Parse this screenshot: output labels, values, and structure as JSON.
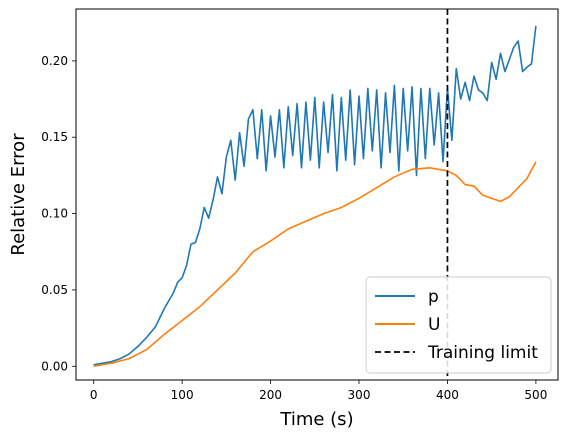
{
  "chart_data": {
    "type": "line",
    "title": "",
    "xlabel": "Time (s)",
    "ylabel": "Relative Error",
    "xlim": [
      -20,
      525
    ],
    "ylim": [
      -0.009,
      0.234
    ],
    "xticks": [
      0,
      100,
      200,
      300,
      400,
      500
    ],
    "yticks": [
      0.0,
      0.05,
      0.1,
      0.15,
      0.2
    ],
    "ytick_labels": [
      "0.00",
      "0.05",
      "0.10",
      "0.15",
      "0.20"
    ],
    "grid": false,
    "legend_position": "lower-right",
    "series": [
      {
        "name": "p",
        "color": "#1f77b4",
        "x": [
          0,
          10,
          20,
          30,
          40,
          50,
          60,
          70,
          80,
          85,
          90,
          95,
          100,
          105,
          110,
          115,
          120,
          125,
          130,
          135,
          140,
          145,
          150,
          155,
          160,
          165,
          170,
          175,
          180,
          185,
          190,
          195,
          200,
          205,
          210,
          215,
          220,
          225,
          230,
          235,
          240,
          245,
          250,
          255,
          260,
          265,
          270,
          275,
          280,
          285,
          290,
          295,
          300,
          305,
          310,
          315,
          320,
          325,
          330,
          335,
          340,
          345,
          350,
          355,
          360,
          365,
          370,
          375,
          380,
          385,
          390,
          395,
          400,
          405,
          410,
          415,
          420,
          425,
          430,
          435,
          440,
          445,
          450,
          455,
          460,
          465,
          470,
          475,
          480,
          485,
          490,
          495,
          500
        ],
        "y": [
          0.001,
          0.002,
          0.003,
          0.005,
          0.008,
          0.013,
          0.019,
          0.026,
          0.038,
          0.043,
          0.048,
          0.055,
          0.058,
          0.066,
          0.08,
          0.081,
          0.09,
          0.104,
          0.097,
          0.109,
          0.124,
          0.113,
          0.137,
          0.148,
          0.122,
          0.153,
          0.131,
          0.162,
          0.168,
          0.136,
          0.168,
          0.128,
          0.164,
          0.137,
          0.168,
          0.13,
          0.17,
          0.138,
          0.172,
          0.13,
          0.173,
          0.135,
          0.176,
          0.13,
          0.173,
          0.14,
          0.178,
          0.128,
          0.176,
          0.135,
          0.181,
          0.132,
          0.177,
          0.136,
          0.182,
          0.141,
          0.181,
          0.13,
          0.179,
          0.14,
          0.184,
          0.128,
          0.182,
          0.141,
          0.183,
          0.125,
          0.182,
          0.136,
          0.182,
          0.145,
          0.179,
          0.134,
          0.182,
          0.148,
          0.195,
          0.175,
          0.186,
          0.174,
          0.19,
          0.181,
          0.179,
          0.174,
          0.199,
          0.188,
          0.205,
          0.193,
          0.201,
          0.209,
          0.213,
          0.193,
          0.196,
          0.198,
          0.223
        ]
      },
      {
        "name": "U",
        "color": "#ff7f0e",
        "x": [
          0,
          20,
          40,
          60,
          80,
          100,
          120,
          140,
          160,
          180,
          200,
          220,
          240,
          260,
          280,
          300,
          320,
          340,
          360,
          380,
          400,
          410,
          420,
          430,
          440,
          450,
          460,
          470,
          480,
          490,
          500
        ],
        "y": [
          0.0,
          0.002,
          0.005,
          0.011,
          0.021,
          0.03,
          0.039,
          0.05,
          0.061,
          0.075,
          0.082,
          0.09,
          0.095,
          0.1,
          0.104,
          0.11,
          0.117,
          0.124,
          0.129,
          0.13,
          0.128,
          0.125,
          0.119,
          0.118,
          0.112,
          0.11,
          0.108,
          0.111,
          0.117,
          0.123,
          0.134
        ]
      },
      {
        "name": "Training limit",
        "color": "#000000",
        "dashed": true,
        "vline_x": 400
      }
    ]
  }
}
